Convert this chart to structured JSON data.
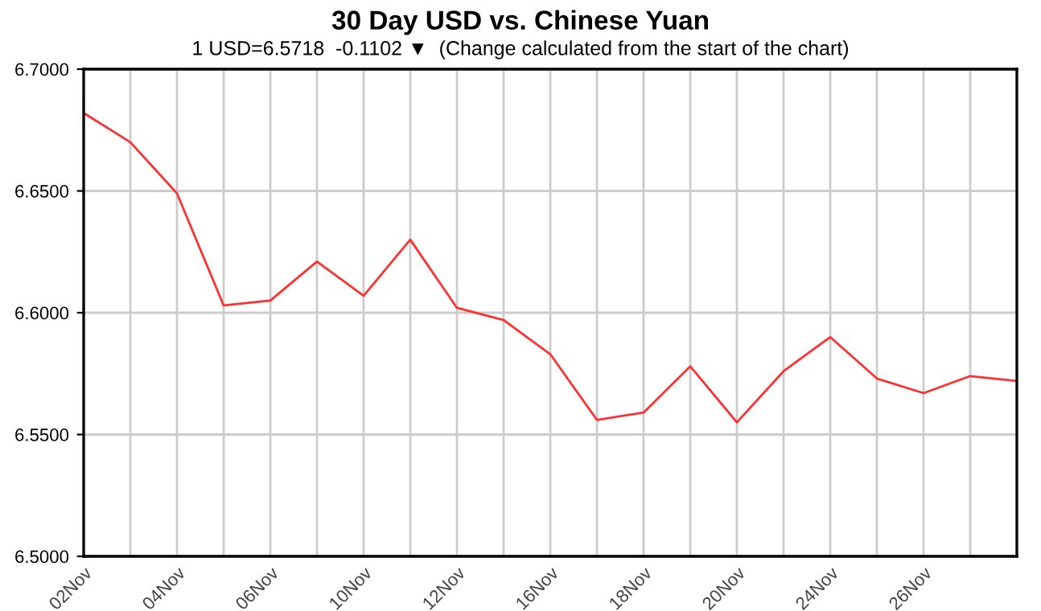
{
  "chart_data": {
    "type": "line",
    "title": "30 Day USD vs. Chinese Yuan",
    "subtitle": "1 USD=6.5718  -0.1102 ▼  (Change calculated from the start of the chart)",
    "categories": [
      "02Nov",
      null,
      "04Nov",
      null,
      "06Nov",
      null,
      "10Nov",
      null,
      "12Nov",
      null,
      "16Nov",
      null,
      "18Nov",
      null,
      "20Nov",
      null,
      "24Nov",
      null,
      "26Nov",
      null,
      null
    ],
    "series": [
      {
        "color": "#ff3030",
        "values": [
          6.682,
          6.67,
          6.649,
          6.603,
          6.605,
          6.621,
          6.607,
          6.63,
          6.602,
          6.597,
          6.583,
          6.556,
          6.559,
          6.578,
          6.555,
          6.576,
          6.59,
          6.573,
          6.567,
          6.574,
          6.572
        ]
      }
    ],
    "ylim": [
      6.5,
      6.7
    ],
    "yticks": [
      {
        "value": 6.5,
        "label": "6.5000"
      },
      {
        "value": 6.55,
        "label": "6.5500"
      },
      {
        "value": 6.6,
        "label": "6.6000"
      },
      {
        "value": 6.65,
        "label": "6.6500"
      },
      {
        "value": 6.7,
        "label": "6.7000"
      }
    ],
    "grid": true,
    "marker": "none",
    "line_style": "solid"
  }
}
